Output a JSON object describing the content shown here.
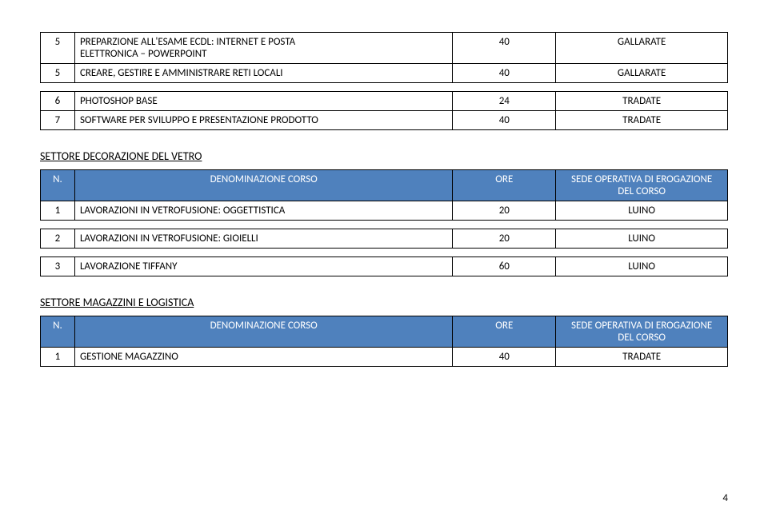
{
  "table1": {
    "rows": [
      {
        "n": "5",
        "desc_line1": "PREPARZIONE ALL'ESAME ECDL: INTERNET E POSTA",
        "desc_line2": "ELETTRONICA – POWERPOINT",
        "ore": "40",
        "sede": "GALLARATE"
      },
      {
        "n": "5",
        "desc_line1": "CREARE, GESTIRE E AMMINISTRARE RETI LOCALI",
        "desc_line2": "",
        "ore": "40",
        "sede": "GALLARATE"
      }
    ]
  },
  "table2": {
    "rows": [
      {
        "n": "6",
        "desc": "PHOTOSHOP BASE",
        "ore": "24",
        "sede": "TRADATE"
      },
      {
        "n": "7",
        "desc": "SOFTWARE PER SVILUPPO E PRESENTAZIONE PRODOTTO",
        "ore": "40",
        "sede": "TRADATE"
      }
    ]
  },
  "section_vetro": {
    "title": "SETTORE DECORAZIONE DEL VETRO"
  },
  "table3": {
    "header": {
      "n": "N.",
      "desc": "DENOMINAZIONE CORSO",
      "ore": "ORE",
      "sede_line1": "SEDE OPERATIVA DI EROGAZIONE",
      "sede_line2": "DEL CORSO"
    },
    "rows": [
      {
        "n": "1",
        "desc": "LAVORAZIONI IN VETROFUSIONE: OGGETTISTICA",
        "ore": "20",
        "sede": "LUINO"
      },
      {
        "n": "2",
        "desc": "LAVORAZIONI IN VETROFUSIONE: GIOIELLI",
        "ore": "20",
        "sede": "LUINO"
      },
      {
        "n": "3",
        "desc": "LAVORAZIONE TIFFANY",
        "ore": "60",
        "sede": "LUINO"
      }
    ]
  },
  "section_magazzini": {
    "title": "SETTORE MAGAZZINI E LOGISTICA"
  },
  "table4": {
    "header": {
      "n": "N.",
      "desc": "DENOMINAZIONE CORSO",
      "ore": "ORE",
      "sede_line1": "SEDE OPERATIVA DI EROGAZIONE",
      "sede_line2": "DEL CORSO"
    },
    "rows": [
      {
        "n": "1",
        "desc": "GESTIONE MAGAZZINO",
        "ore": "40",
        "sede": "TRADATE"
      }
    ]
  },
  "page_number": "4",
  "colors": {
    "header_bg": "#4f81bd",
    "header_text": "#ffffff",
    "border": "#000000",
    "body_text": "#000000",
    "background": "#ffffff"
  }
}
